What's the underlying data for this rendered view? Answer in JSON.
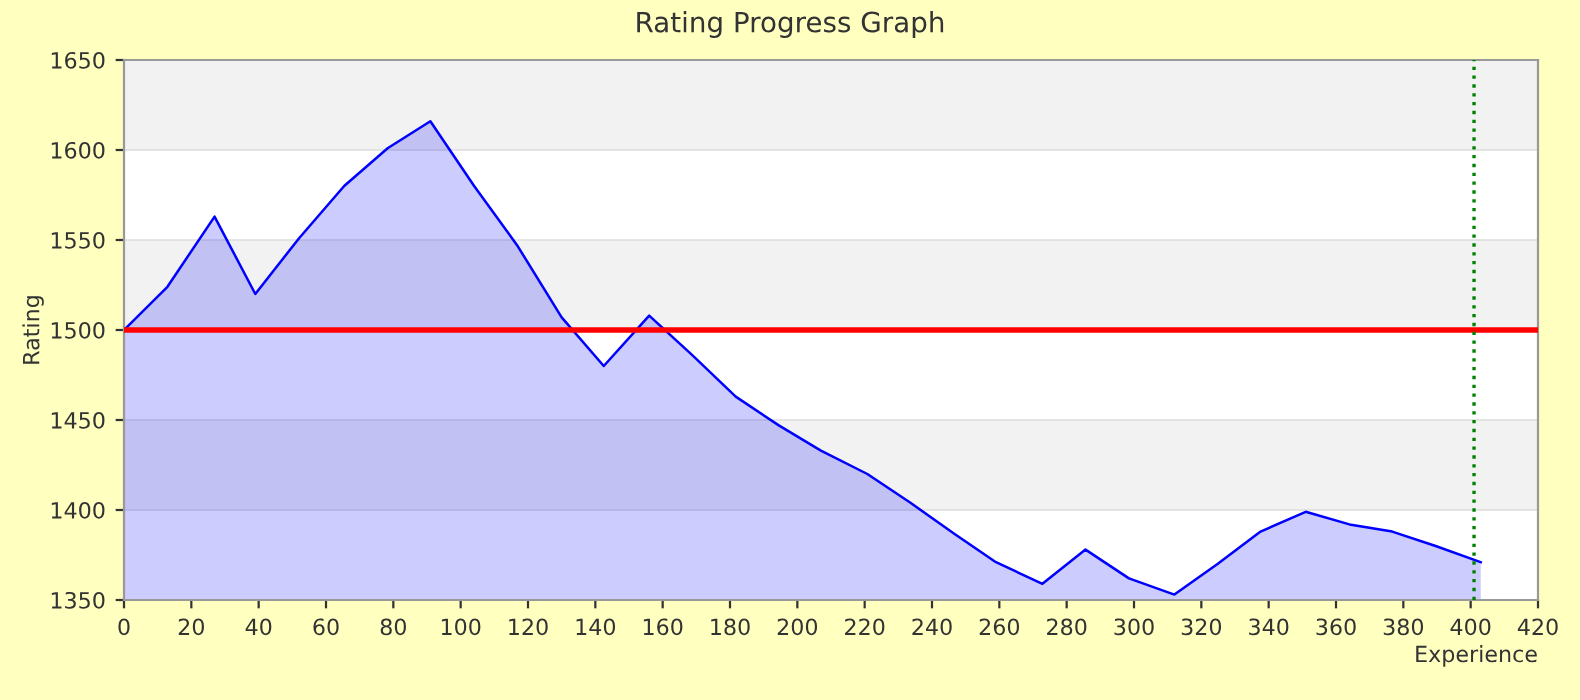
{
  "chart_data": {
    "type": "area",
    "title": "Rating Progress Graph",
    "xlabel": "Experience",
    "ylabel": "Rating",
    "x": [
      0,
      12.9,
      26.9,
      39,
      52,
      65.4,
      78.3,
      91,
      104,
      116.8,
      130,
      142.5,
      156,
      168.8,
      181.7,
      194.5,
      207,
      220.8,
      233.6,
      246.5,
      259,
      272.8,
      285.6,
      298.5,
      312,
      324.8,
      337.6,
      351,
      364,
      376.7,
      389.6,
      403
    ],
    "series": [
      {
        "color": "#0000ff",
        "values": [
          1500,
          1524,
          1563,
          1520,
          1551,
          1580,
          1601,
          1616,
          1580,
          1547,
          1507,
          1480,
          1508,
          1486,
          1463,
          1447,
          1433,
          1420,
          1404,
          1387,
          1371,
          1359,
          1378,
          1362,
          1353,
          1370,
          1388,
          1399,
          1392,
          1388,
          1380,
          1371
        ]
      }
    ],
    "xlim": [
      0,
      420
    ],
    "xticks": [
      0,
      20,
      40,
      60,
      80,
      100,
      120,
      140,
      160,
      180,
      200,
      220,
      240,
      260,
      280,
      300,
      320,
      340,
      360,
      380,
      400,
      420
    ],
    "ylim": [
      1350,
      1650
    ],
    "yticks": [
      1350,
      1400,
      1450,
      1500,
      1550,
      1600,
      1650
    ],
    "grid": "y",
    "ref_lines": [
      {
        "axis": "y",
        "value": 1500,
        "color": "#ff0000",
        "line_style": "solid"
      },
      {
        "axis": "x",
        "value": 401,
        "color": "#008000",
        "line_style": "dotted"
      }
    ]
  }
}
